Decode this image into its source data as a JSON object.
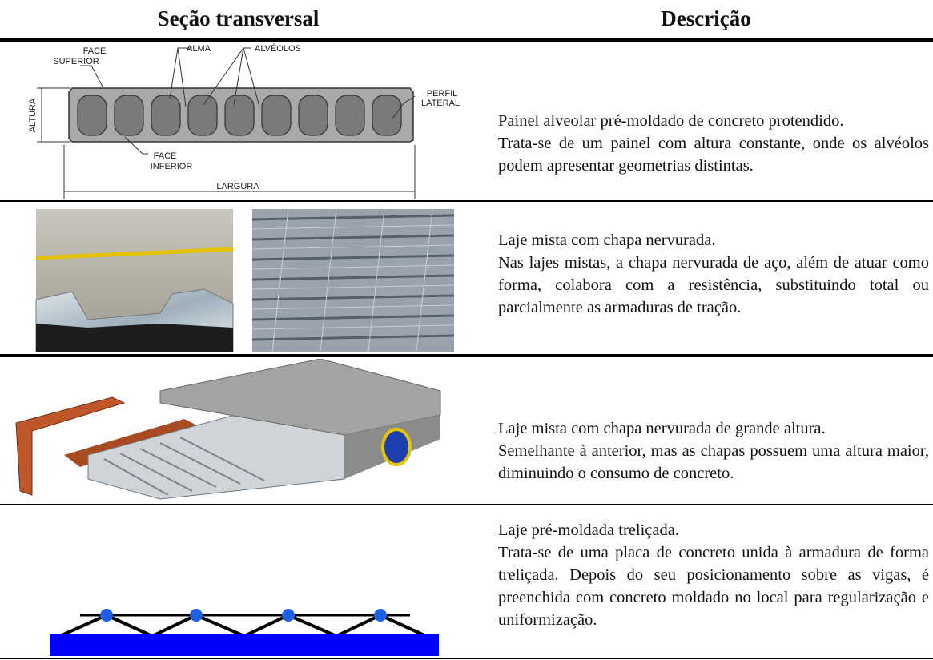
{
  "table": {
    "headers": [
      "Seção transversal",
      "Descrição"
    ],
    "rows": [
      {
        "title": "Painel alveolar pré-moldado de concreto protendido.",
        "text": "Trata-se de um painel com altura constante, onde os alvéolos podem apresentar geometrias distintas.",
        "figure_labels": {
          "face_superior": [
            "FACE",
            "SUPERIOR"
          ],
          "alma": "ALMA",
          "alveolos": "ALVÉOLOS",
          "perfil_lateral": [
            "PERFIL",
            "LATERAL"
          ],
          "altura": "ALTURA",
          "face_inferior": [
            "FACE",
            "INFERIOR"
          ],
          "largura": "LARGURA"
        }
      },
      {
        "title": "Laje mista com chapa nervurada.",
        "text": "Nas lajes mistas, a chapa nervurada de aço, além de atuar como forma, colabora com a resistência, substituindo total ou parcialmente as armaduras de tração."
      },
      {
        "title": "Laje mista com chapa nervurada de grande altura.",
        "text": "Semelhante à anterior, mas as chapas possuem uma altura maior, diminuindo o consumo de concreto."
      },
      {
        "title": "Laje pré-moldada treliçada.",
        "text": "Trata-se de uma placa de concreto unida à armadura de forma treliçada. Depois do seu posicionamento sobre as vigas, é preenchida com concreto moldado no local para regularização e uniformização."
      }
    ]
  }
}
